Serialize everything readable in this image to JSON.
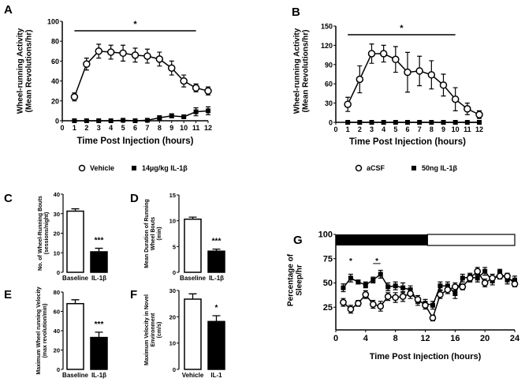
{
  "chart_data": [
    {
      "panel": "A",
      "type": "line",
      "xlabel": "Time Post Injection (hours)",
      "ylabel": [
        "Wheel-running Activity",
        "(Mean Revolutions/hr)"
      ],
      "xlim": [
        0,
        12
      ],
      "ylim": [
        0,
        100
      ],
      "xticks": [
        0,
        1,
        2,
        3,
        4,
        5,
        6,
        7,
        8,
        9,
        10,
        11,
        12
      ],
      "yticks": [
        0,
        20,
        40,
        60,
        80,
        100
      ],
      "significance": {
        "label": "*",
        "from": 1,
        "to": 11
      },
      "legend_position": "bottom",
      "series": [
        {
          "name": "Vehicle",
          "marker": "open-circle",
          "x": [
            1,
            2,
            3,
            4,
            5,
            6,
            7,
            8,
            9,
            10,
            11,
            12
          ],
          "y": [
            24,
            57,
            70,
            69,
            68,
            66,
            65,
            62,
            53,
            40,
            33,
            30
          ],
          "err": [
            4,
            6,
            7,
            7,
            8,
            7,
            7,
            7,
            7,
            6,
            4,
            4
          ]
        },
        {
          "name": "14µg/kg IL-1β",
          "marker": "filled-square",
          "x": [
            1,
            2,
            3,
            4,
            5,
            6,
            7,
            8,
            9,
            10,
            11,
            12
          ],
          "y": [
            0,
            0,
            0,
            0,
            0.5,
            0,
            0.5,
            3,
            5,
            4,
            9,
            10
          ],
          "err": [
            0,
            0,
            0,
            0,
            0,
            0,
            0,
            2,
            2,
            1,
            4,
            4
          ]
        }
      ]
    },
    {
      "panel": "B",
      "type": "line",
      "xlabel": "Time Post Injection (hours)",
      "ylabel": [
        "Wheel-running Activity",
        "(Mean Revolutions/hr)"
      ],
      "xlim": [
        0,
        12
      ],
      "ylim": [
        0,
        150
      ],
      "xticks": [
        0,
        1,
        2,
        3,
        4,
        5,
        6,
        7,
        8,
        9,
        10,
        11,
        12
      ],
      "yticks": [
        0,
        30,
        60,
        90,
        120,
        150
      ],
      "significance": {
        "label": "*",
        "from": 1,
        "to": 10
      },
      "legend_position": "bottom",
      "series": [
        {
          "name": "aCSF",
          "marker": "open-circle",
          "x": [
            1,
            2,
            3,
            4,
            5,
            6,
            7,
            8,
            9,
            10,
            11,
            12
          ],
          "y": [
            28,
            67,
            107,
            107,
            98,
            78,
            80,
            74,
            58,
            36,
            21,
            12
          ],
          "err": [
            11,
            21,
            15,
            13,
            20,
            31,
            23,
            22,
            17,
            18,
            9,
            6
          ]
        },
        {
          "name": "50ng IL-1β",
          "marker": "filled-square",
          "x": [
            1,
            2,
            3,
            4,
            5,
            6,
            7,
            8,
            9,
            10,
            11,
            12
          ],
          "y": [
            0,
            0,
            0,
            0,
            0,
            0,
            0,
            0,
            0,
            0,
            0,
            0
          ],
          "err": [
            0,
            0,
            0,
            0,
            0,
            0,
            0,
            0,
            0,
            0,
            0,
            0
          ]
        }
      ]
    },
    {
      "panel": "C",
      "type": "bar",
      "ylabel": [
        "No. of Wheel-Running Bouts",
        "(sessions/night)"
      ],
      "ylim": [
        0,
        40
      ],
      "yticks": [
        0,
        10,
        20,
        30,
        40
      ],
      "categories": [
        "Baseline",
        "IL-1β"
      ],
      "values": [
        31.3,
        10.5
      ],
      "err": [
        1.2,
        1.8
      ],
      "annotations": [
        "",
        "***"
      ]
    },
    {
      "panel": "D",
      "type": "bar",
      "ylabel": [
        "Mean Duration of Running",
        "Wheel Bouts",
        "(min)"
      ],
      "ylim": [
        0,
        15
      ],
      "yticks": [
        0,
        5,
        10,
        15
      ],
      "categories": [
        "Baseline",
        "IL-1β"
      ],
      "values": [
        10.3,
        4.1
      ],
      "err": [
        0.4,
        0.4
      ],
      "annotations": [
        "",
        "***"
      ]
    },
    {
      "panel": "E",
      "type": "bar",
      "ylabel": [
        "Maximum Wheel running Velocity",
        "(max revolution/min)"
      ],
      "ylim": [
        0,
        80
      ],
      "yticks": [
        0,
        20,
        40,
        60,
        80
      ],
      "categories": [
        "Baseline",
        "IL-1β"
      ],
      "values": [
        68,
        33
      ],
      "err": [
        4,
        5.5
      ],
      "annotations": [
        "",
        "***"
      ]
    },
    {
      "panel": "F",
      "type": "bar",
      "ylabel": [
        "Maximum Velocity in Novel",
        "Environment",
        "(cm/s)"
      ],
      "ylim": [
        0,
        30
      ],
      "yticks": [
        0,
        10,
        20,
        30
      ],
      "categories": [
        "Vehicle",
        "IL-1"
      ],
      "values": [
        26.7,
        18.2
      ],
      "err": [
        2,
        2.2
      ],
      "annotations": [
        "",
        "*"
      ]
    },
    {
      "panel": "G",
      "type": "line",
      "xlabel": "Time Post Injection (hours)",
      "ylabel": [
        "Percentage of",
        "Sleep/hr"
      ],
      "xlim": [
        0,
        24
      ],
      "ylim": [
        0,
        100
      ],
      "xticks": [
        0,
        4,
        8,
        12,
        16,
        20,
        24
      ],
      "yticks": [
        25,
        50,
        75,
        100
      ],
      "dark_phase": {
        "from": 0,
        "to": 12.3
      },
      "significance_marks": [
        {
          "label": "*",
          "x": 2
        },
        {
          "label": "*",
          "x": 5.5,
          "from": 5,
          "to": 6
        }
      ],
      "series": [
        {
          "name": "Vehicle",
          "marker": "open-circle",
          "x": [
            1,
            2,
            3,
            4,
            5,
            6,
            7,
            8,
            9,
            10,
            11,
            12,
            13,
            14,
            15,
            16,
            17,
            18,
            19,
            20,
            21,
            22,
            23,
            24
          ],
          "y": [
            30,
            23,
            29,
            38,
            28,
            26,
            36,
            35,
            36,
            39,
            33,
            27,
            14,
            38,
            43,
            46,
            46,
            55,
            62,
            50,
            55,
            57,
            57,
            49
          ],
          "err": [
            4,
            4,
            3,
            4,
            4,
            5,
            4,
            5,
            5,
            5,
            4,
            4,
            3,
            4,
            4,
            4,
            3,
            4,
            4,
            4,
            4,
            3,
            3,
            3
          ]
        },
        {
          "name": "IL-1β",
          "marker": "filled-square",
          "x": [
            1,
            2,
            3,
            4,
            5,
            6,
            7,
            8,
            9,
            10,
            11,
            12,
            13,
            14,
            15,
            16,
            17,
            18,
            19,
            20,
            21,
            22,
            23,
            24
          ],
          "y": [
            45,
            55,
            51,
            48,
            53,
            59,
            46,
            47,
            45,
            43,
            31,
            29,
            27,
            47,
            47,
            39,
            55,
            56,
            55,
            62,
            52,
            61,
            53,
            53
          ],
          "err": [
            4,
            4,
            2,
            3,
            3,
            4,
            4,
            4,
            5,
            4,
            4,
            4,
            4,
            4,
            4,
            5,
            4,
            4,
            4,
            4,
            4,
            3,
            4,
            4
          ]
        }
      ]
    }
  ]
}
